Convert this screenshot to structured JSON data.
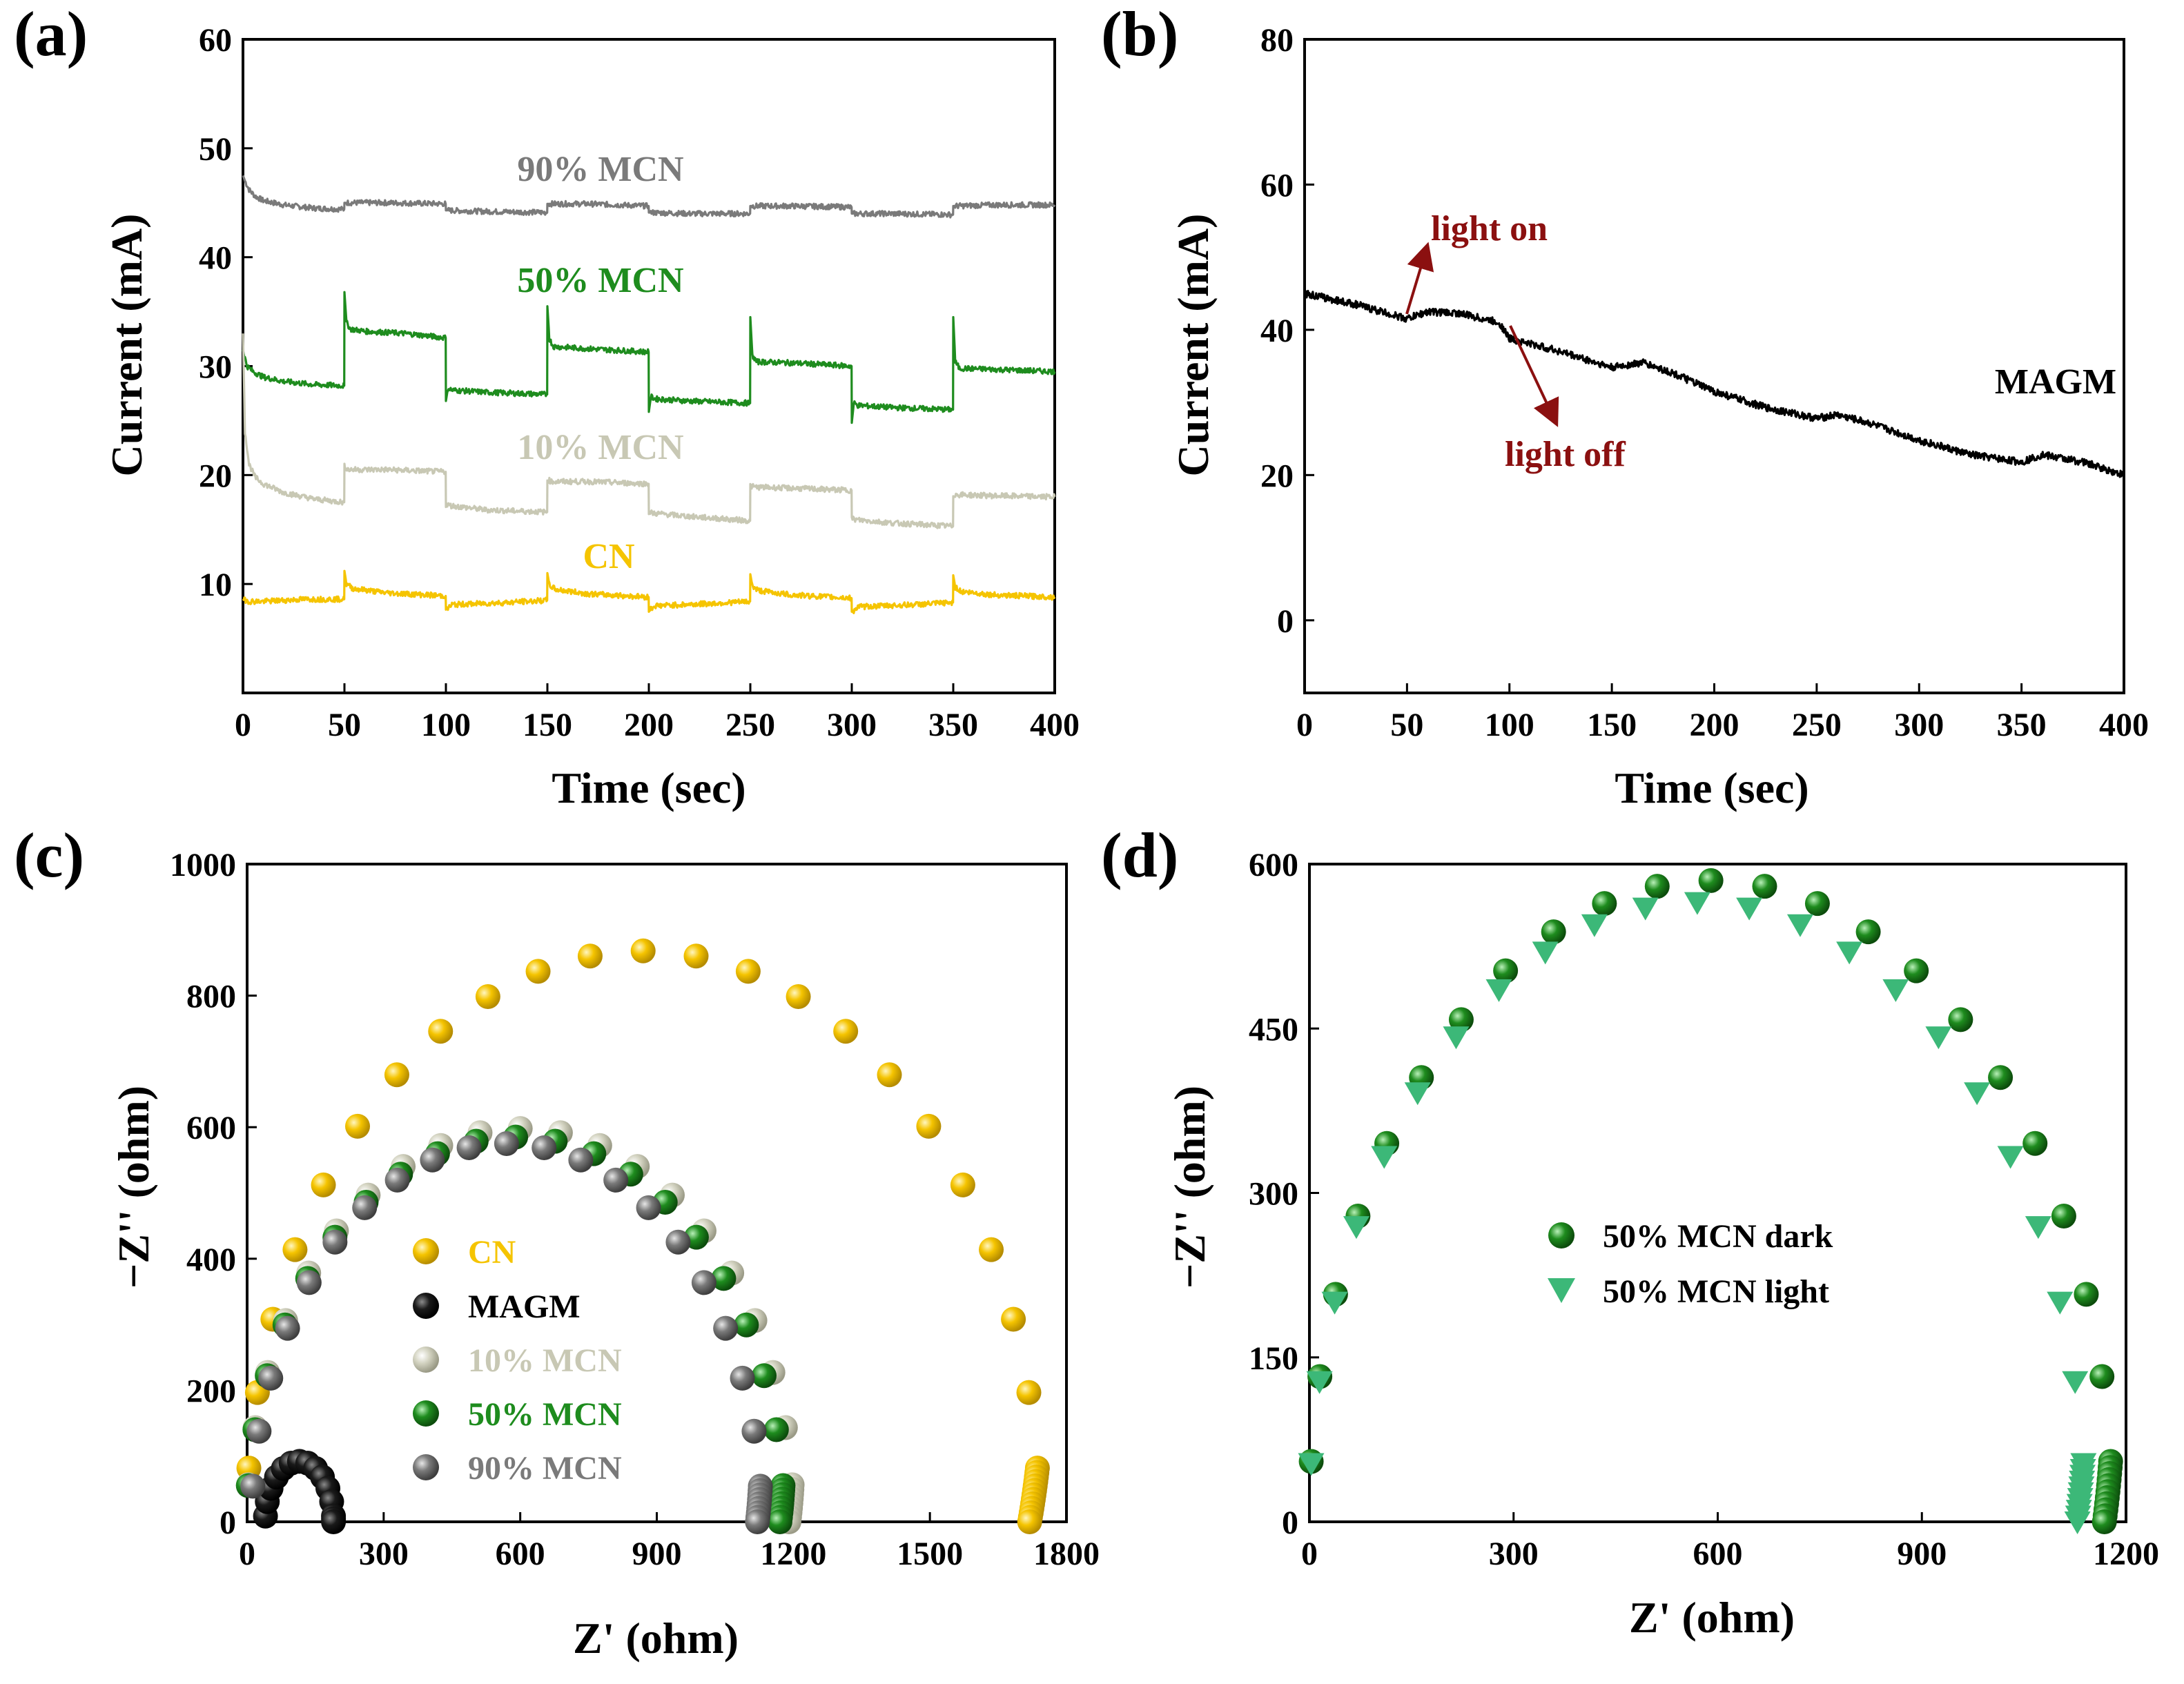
{
  "colors": {
    "cn": "#f5c400",
    "magm": "#000000",
    "mcn10": "#c8c8b4",
    "mcn50": "#1e8c1e",
    "mcn90": "#7a7a7a",
    "dark": "#1e8c1e",
    "light": "#3cb878",
    "annotation": "#8b1010"
  },
  "chart_data": [
    {
      "id": "a",
      "panel_label": "(a)",
      "type": "line",
      "xlabel": "Time (sec)",
      "ylabel": "Current (mA)",
      "xlim": [
        0,
        400
      ],
      "ylim": [
        0,
        60
      ],
      "xticks": [
        0,
        50,
        100,
        150,
        200,
        250,
        300,
        350,
        400
      ],
      "yticks": [
        10,
        20,
        30,
        40,
        50,
        60
      ],
      "series": [
        {
          "name": "90% MCN",
          "color_key": "mcn90",
          "x": [
            0,
            1,
            3,
            6,
            10,
            20,
            35,
            49.9,
            50,
            51,
            70,
            99.9,
            100,
            101,
            120,
            149.9,
            150,
            151,
            170,
            199.9,
            200,
            201,
            220,
            249.9,
            250,
            251,
            270,
            299.9,
            300,
            301,
            320,
            349.9,
            350,
            351,
            370,
            400
          ],
          "y": [
            47.5,
            47,
            46.2,
            45.6,
            45.2,
            44.8,
            44.5,
            44.4,
            45.0,
            45.0,
            45.0,
            44.9,
            44.3,
            44.3,
            44.2,
            44.1,
            44.9,
            44.9,
            44.9,
            44.7,
            44.1,
            44.1,
            44.0,
            44.0,
            44.7,
            44.7,
            44.7,
            44.6,
            44.0,
            44.0,
            44.0,
            43.9,
            44.7,
            44.7,
            44.8,
            44.8
          ]
        },
        {
          "name": "50% MCN",
          "color_key": "mcn50",
          "x": [
            0,
            2,
            5,
            10,
            20,
            35,
            49.9,
            50,
            51,
            53,
            60,
            80,
            99.9,
            100,
            101,
            103,
            120,
            149.9,
            150,
            151,
            153,
            170,
            199.9,
            200,
            201,
            203,
            220,
            249.9,
            250,
            251,
            253,
            270,
            299.9,
            300,
            301,
            303,
            320,
            349.9,
            350,
            351,
            353,
            370,
            400
          ],
          "y": [
            31.5,
            30,
            29.5,
            29,
            28.6,
            28.3,
            28.2,
            36.8,
            34,
            33.4,
            33.2,
            33.0,
            32.6,
            26.8,
            28,
            27.8,
            27.6,
            27.4,
            35.5,
            32.5,
            31.8,
            31.6,
            31.3,
            25.8,
            27.2,
            27.0,
            26.8,
            26.6,
            34.5,
            31,
            30.4,
            30.3,
            30.0,
            24.8,
            26.6,
            26.4,
            26.2,
            26.0,
            34.5,
            30.4,
            29.8,
            29.7,
            29.5
          ]
        },
        {
          "name": "10% MCN",
          "color_key": "mcn10",
          "x": [
            0,
            1,
            3,
            6,
            10,
            20,
            35,
            49.9,
            50,
            52,
            70,
            99.9,
            100,
            102,
            120,
            149.9,
            150,
            152,
            170,
            199.9,
            200,
            202,
            220,
            249.9,
            250,
            252,
            270,
            299.9,
            300,
            302,
            320,
            349.9,
            350,
            352,
            370,
            400
          ],
          "y": [
            33,
            24,
            21,
            19.8,
            19.2,
            18.4,
            17.8,
            17.5,
            20.8,
            20.5,
            20.5,
            20.3,
            17.3,
            17.2,
            16.8,
            16.6,
            19.6,
            19.4,
            19.4,
            19.2,
            16.6,
            16.5,
            16.2,
            15.8,
            19.0,
            18.9,
            18.8,
            18.6,
            16.0,
            15.9,
            15.6,
            15.3,
            18.2,
            18.2,
            18.1,
            18.0
          ]
        },
        {
          "name": "CN",
          "color_key": "cn",
          "x": [
            0,
            3,
            10,
            30,
            49.9,
            50,
            51,
            54,
            70,
            99.9,
            100,
            103,
            130,
            149.9,
            150,
            151,
            154,
            170,
            199.9,
            200,
            203,
            230,
            249.9,
            250,
            251,
            254,
            270,
            299.9,
            300,
            303,
            330,
            349.9,
            350,
            351,
            354,
            370,
            400
          ],
          "y": [
            8.6,
            8.4,
            8.4,
            8.6,
            8.6,
            11.2,
            10.0,
            9.6,
            9.2,
            8.9,
            7.6,
            8.1,
            8.3,
            8.5,
            11.0,
            9.9,
            9.5,
            9.1,
            8.8,
            7.6,
            8.0,
            8.2,
            8.4,
            10.9,
            9.8,
            9.4,
            9.0,
            8.7,
            7.4,
            7.9,
            8.1,
            8.3,
            10.8,
            9.7,
            9.3,
            9.0,
            8.8
          ]
        }
      ]
    },
    {
      "id": "b",
      "panel_label": "(b)",
      "type": "line",
      "xlabel": "Time (sec)",
      "ylabel": "Current (mA)",
      "xlim": [
        0,
        400
      ],
      "ylim": [
        -10,
        80
      ],
      "xticks": [
        0,
        50,
        100,
        150,
        200,
        250,
        300,
        350,
        400
      ],
      "yticks": [
        0,
        20,
        40,
        60,
        80
      ],
      "annotations": [
        "light on",
        "light off"
      ],
      "series": [
        {
          "name": "MAGM",
          "color_key": "magm",
          "x": [
            0,
            25,
            50,
            60,
            75,
            95,
            100,
            125,
            150,
            165,
            180,
            200,
            225,
            250,
            260,
            275,
            300,
            325,
            350,
            360,
            380,
            400
          ],
          "y": [
            45,
            43.5,
            41.5,
            42.5,
            42.3,
            41.0,
            38.8,
            37.0,
            34.8,
            35.5,
            34.0,
            31.5,
            29.3,
            27.8,
            28.3,
            27.2,
            24.8,
            22.8,
            21.8,
            22.8,
            21.8,
            20.0
          ]
        }
      ]
    },
    {
      "id": "c",
      "panel_label": "(c)",
      "type": "scatter",
      "xlabel": "Z' (ohm)",
      "ylabel": "−Z'' (ohm)",
      "xlim": [
        0,
        1800
      ],
      "ylim": [
        0,
        1000
      ],
      "xticks": [
        0,
        300,
        600,
        900,
        1200,
        1500,
        1800
      ],
      "yticks": [
        0,
        200,
        400,
        600,
        800,
        1000
      ],
      "series": [
        {
          "name": "CN",
          "color_key": "cn",
          "semicircle": {
            "x0": 0,
            "x1": 1740,
            "peak": 868,
            "n": 22,
            "tail": 12
          }
        },
        {
          "name": "MAGM",
          "color_key": "magm",
          "semicircle": {
            "x0": 40,
            "x1": 190,
            "peak": 92,
            "n": 12,
            "tail": 2
          }
        },
        {
          "name": "10% MCN",
          "color_key": "mcn10",
          "semicircle": {
            "x0": 0,
            "x1": 1200,
            "peak": 598,
            "n": 20,
            "tail": 8
          }
        },
        {
          "name": "50% MCN",
          "color_key": "mcn50",
          "semicircle": {
            "x0": 0,
            "x1": 1180,
            "peak": 585,
            "n": 20,
            "tail": 8
          }
        },
        {
          "name": "90% MCN",
          "color_key": "mcn90",
          "semicircle": {
            "x0": 10,
            "x1": 1130,
            "peak": 575,
            "n": 20,
            "tail": 8
          }
        }
      ]
    },
    {
      "id": "d",
      "panel_label": "(d)",
      "type": "scatter",
      "xlabel": "Z' (ohm)",
      "ylabel": "−Z'' (ohm)",
      "xlim": [
        0,
        1200
      ],
      "ylim": [
        0,
        600
      ],
      "xticks": [
        0,
        300,
        600,
        900,
        1200
      ],
      "yticks": [
        0,
        150,
        300,
        450,
        600
      ],
      "series": [
        {
          "name": "50% MCN dark",
          "color_key": "dark",
          "marker": "circle",
          "semicircle": {
            "x0": 0,
            "x1": 1180,
            "peak": 585,
            "n": 22,
            "tail": 10
          }
        },
        {
          "name": "50% MCN light",
          "color_key": "light",
          "marker": "triangle",
          "semicircle": {
            "x0": 0,
            "x1": 1140,
            "peak": 565,
            "n": 22,
            "tail": 10
          }
        }
      ]
    }
  ]
}
